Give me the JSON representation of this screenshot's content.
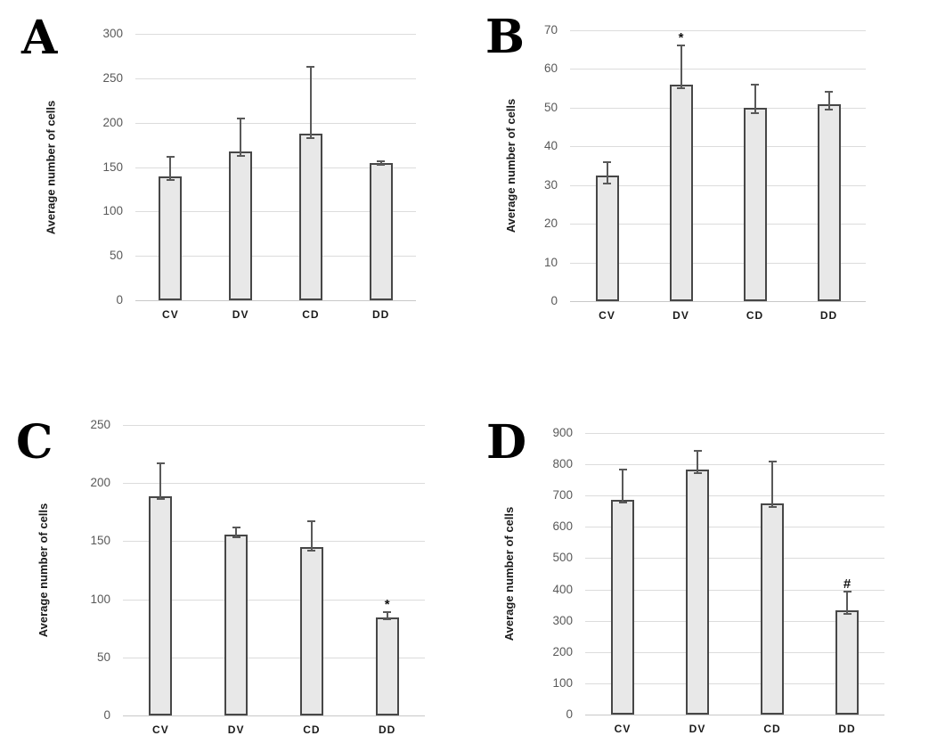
{
  "colors": {
    "background": "#ffffff",
    "bar_fill": "#e8e8e8",
    "bar_border": "#474747",
    "gridline": "#dcdcdc",
    "baseline": "#c8c8c8",
    "error_bar": "#595959",
    "tick_label": "#595959",
    "category_label": "#1a1a1a",
    "panel_letter": "#000000"
  },
  "chart_data": [
    {
      "panel_label": "A",
      "type": "bar",
      "title": "",
      "xlabel": "",
      "ylabel": "Average number of cells",
      "ylim": [
        0,
        300
      ],
      "yticks": [
        0,
        50,
        100,
        150,
        200,
        250,
        300
      ],
      "grid": true,
      "legend": "none",
      "categories": [
        "CV",
        "DV",
        "CD",
        "DD"
      ],
      "values": [
        139,
        168,
        188,
        155
      ],
      "error_top": [
        162,
        205,
        263,
        157
      ],
      "error_bottom": [
        135,
        163,
        183,
        153
      ],
      "sig_markers": [
        "",
        "",
        "",
        ""
      ]
    },
    {
      "panel_label": "B",
      "type": "bar",
      "title": "",
      "xlabel": "",
      "ylabel": "Average number of cells",
      "ylim": [
        0,
        70
      ],
      "yticks": [
        0,
        10,
        20,
        30,
        40,
        50,
        60,
        70
      ],
      "grid": true,
      "legend": "none",
      "categories": [
        "CV",
        "DV",
        "CD",
        "DD"
      ],
      "values": [
        32.5,
        56,
        50,
        51
      ],
      "error_top": [
        36,
        66,
        56,
        54
      ],
      "error_bottom": [
        30.5,
        55,
        48.5,
        49.5
      ],
      "sig_markers": [
        "",
        "*",
        "",
        ""
      ]
    },
    {
      "panel_label": "C",
      "type": "bar",
      "title": "",
      "xlabel": "",
      "ylabel": "Average number of cells",
      "ylim": [
        0,
        250
      ],
      "yticks": [
        0,
        50,
        100,
        150,
        200,
        250
      ],
      "grid": true,
      "legend": "none",
      "categories": [
        "CV",
        "DV",
        "CD",
        "DD"
      ],
      "values": [
        189,
        156,
        145,
        84.5
      ],
      "error_top": [
        217,
        162,
        167,
        89
      ],
      "error_bottom": [
        186,
        153,
        142,
        83
      ],
      "sig_markers": [
        "",
        "",
        "",
        "*"
      ]
    },
    {
      "panel_label": "D",
      "type": "bar",
      "title": "",
      "xlabel": "",
      "ylabel": "Average number of cells",
      "ylim": [
        0,
        900
      ],
      "yticks": [
        0,
        100,
        200,
        300,
        400,
        500,
        600,
        700,
        800,
        900
      ],
      "grid": true,
      "legend": "none",
      "categories": [
        "CV",
        "DV",
        "CD",
        "DD"
      ],
      "values": [
        687,
        782,
        675,
        333
      ],
      "error_top": [
        782,
        843,
        808,
        393
      ],
      "error_bottom": [
        677,
        772,
        665,
        323
      ],
      "sig_markers": [
        "",
        "",
        "",
        "#"
      ]
    }
  ]
}
